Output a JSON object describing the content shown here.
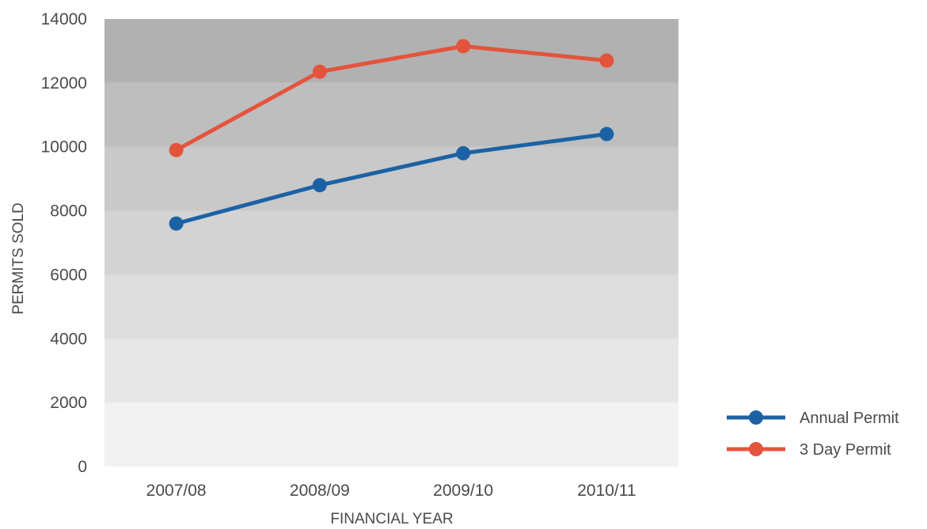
{
  "chart_data": {
    "type": "line",
    "xlabel": "FINANCIAL YEAR",
    "ylabel": "PERMITS SOLD",
    "ylim": [
      0,
      14000
    ],
    "yticks": [
      0,
      2000,
      4000,
      6000,
      8000,
      10000,
      12000,
      14000
    ],
    "ytick_labels": [
      "0",
      "2000",
      "4000",
      "6000",
      "8000",
      "10000",
      "12000",
      "14000"
    ],
    "categories": [
      "2007/08",
      "2008/09",
      "2009/10",
      "2010/11"
    ],
    "grid": "banded horizontal",
    "legend_position": "bottom-right",
    "band_colors": [
      "#f2f2f2",
      "#e7e7e7",
      "#dddddd",
      "#d3d3d3",
      "#c9c9c9",
      "#bebebe",
      "#b1b1b1"
    ],
    "series": [
      {
        "name": "Annual Permit",
        "values": [
          7600,
          8800,
          9800,
          10400
        ],
        "color": "#1b62a5"
      },
      {
        "name": "3 Day Permit",
        "values": [
          9900,
          12350,
          13150,
          12700
        ],
        "color": "#e4533c"
      }
    ]
  }
}
